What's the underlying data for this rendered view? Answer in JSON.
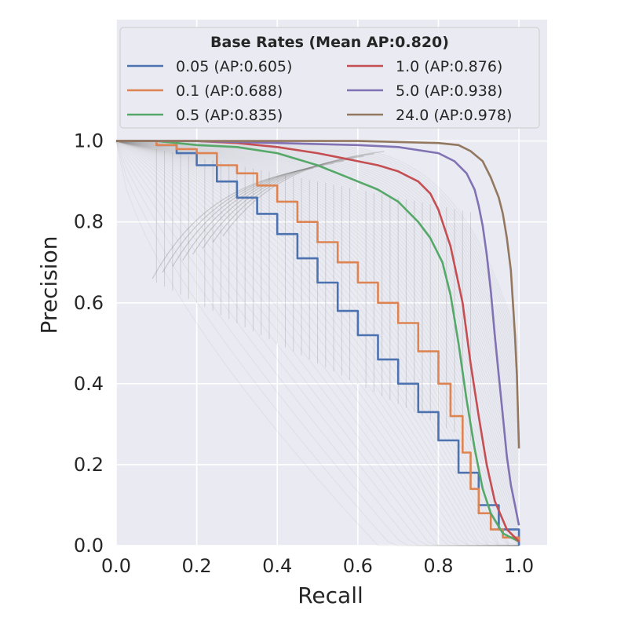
{
  "chart_data": {
    "type": "line",
    "xlabel": "Recall",
    "ylabel": "Precision",
    "xlim": [
      0.0,
      1.07
    ],
    "ylim": [
      0.0,
      1.3
    ],
    "xticks": [
      "0.0",
      "0.2",
      "0.4",
      "0.6",
      "0.8",
      "1.0"
    ],
    "xtick_values": [
      0.0,
      0.2,
      0.4,
      0.6,
      0.8,
      1.0
    ],
    "yticks": [
      "0.0",
      "0.2",
      "0.4",
      "0.6",
      "0.8",
      "1.0"
    ],
    "ytick_values": [
      0.0,
      0.2,
      0.4,
      0.6,
      0.8,
      1.0
    ],
    "grid": true,
    "legend": {
      "title": "Base Rates (Mean AP:0.820)",
      "placement": "top",
      "columns": 2
    },
    "background_style": "many faint gray precision-recall curves plus vertical gray steps",
    "series": [
      {
        "name": "0.05 (AP:0.605)",
        "color": "#4c72b0",
        "step": true,
        "x": [
          0.0,
          0.1,
          0.15,
          0.2,
          0.25,
          0.3,
          0.35,
          0.4,
          0.45,
          0.5,
          0.55,
          0.6,
          0.65,
          0.7,
          0.75,
          0.8,
          0.85,
          0.9,
          0.95,
          1.0
        ],
        "y": [
          1.0,
          0.99,
          0.97,
          0.94,
          0.9,
          0.86,
          0.82,
          0.77,
          0.71,
          0.65,
          0.58,
          0.52,
          0.46,
          0.4,
          0.33,
          0.26,
          0.18,
          0.1,
          0.04,
          0.0
        ]
      },
      {
        "name": "0.1 (AP:0.688)",
        "color": "#dd8452",
        "step": true,
        "x": [
          0.0,
          0.1,
          0.15,
          0.2,
          0.25,
          0.3,
          0.35,
          0.4,
          0.45,
          0.5,
          0.55,
          0.6,
          0.65,
          0.7,
          0.75,
          0.8,
          0.83,
          0.86,
          0.88,
          0.9,
          0.93,
          0.96,
          1.0
        ],
        "y": [
          1.0,
          0.99,
          0.98,
          0.97,
          0.94,
          0.92,
          0.89,
          0.85,
          0.8,
          0.75,
          0.7,
          0.65,
          0.6,
          0.55,
          0.48,
          0.4,
          0.32,
          0.23,
          0.14,
          0.08,
          0.04,
          0.02,
          0.01
        ]
      },
      {
        "name": "0.5 (AP:0.835)",
        "color": "#55a868",
        "x": [
          0.0,
          0.1,
          0.2,
          0.3,
          0.4,
          0.5,
          0.55,
          0.6,
          0.65,
          0.7,
          0.75,
          0.78,
          0.81,
          0.83,
          0.85,
          0.87,
          0.89,
          0.91,
          0.93,
          0.96,
          1.0
        ],
        "y": [
          1.0,
          1.0,
          0.99,
          0.985,
          0.97,
          0.94,
          0.92,
          0.9,
          0.88,
          0.85,
          0.8,
          0.76,
          0.7,
          0.62,
          0.5,
          0.36,
          0.24,
          0.14,
          0.08,
          0.03,
          0.01
        ]
      },
      {
        "name": "1.0 (AP:0.876)",
        "color": "#c44e52",
        "x": [
          0.0,
          0.1,
          0.2,
          0.3,
          0.4,
          0.5,
          0.55,
          0.6,
          0.65,
          0.7,
          0.75,
          0.78,
          0.8,
          0.83,
          0.86,
          0.88,
          0.9,
          0.92,
          0.94,
          0.97,
          1.0
        ],
        "y": [
          1.0,
          1.0,
          1.0,
          0.995,
          0.985,
          0.97,
          0.96,
          0.95,
          0.94,
          0.925,
          0.9,
          0.87,
          0.83,
          0.74,
          0.6,
          0.45,
          0.32,
          0.2,
          0.11,
          0.04,
          0.01
        ]
      },
      {
        "name": "5.0 (AP:0.938)",
        "color": "#8172b3",
        "x": [
          0.0,
          0.2,
          0.4,
          0.6,
          0.7,
          0.8,
          0.84,
          0.87,
          0.89,
          0.9,
          0.91,
          0.92,
          0.93,
          0.94,
          0.95,
          0.96,
          0.97,
          0.98,
          0.99,
          1.0
        ],
        "y": [
          1.0,
          1.0,
          0.995,
          0.99,
          0.985,
          0.97,
          0.95,
          0.92,
          0.88,
          0.84,
          0.79,
          0.72,
          0.63,
          0.52,
          0.42,
          0.32,
          0.22,
          0.15,
          0.1,
          0.05
        ]
      },
      {
        "name": "24.0 (AP:0.978)",
        "color": "#937860",
        "x": [
          0.0,
          0.2,
          0.4,
          0.6,
          0.8,
          0.85,
          0.88,
          0.91,
          0.93,
          0.95,
          0.96,
          0.97,
          0.98,
          0.985,
          0.99,
          0.995,
          1.0
        ],
        "y": [
          1.0,
          1.0,
          1.0,
          1.0,
          0.995,
          0.99,
          0.975,
          0.95,
          0.91,
          0.86,
          0.82,
          0.76,
          0.68,
          0.6,
          0.52,
          0.42,
          0.24
        ]
      }
    ]
  }
}
